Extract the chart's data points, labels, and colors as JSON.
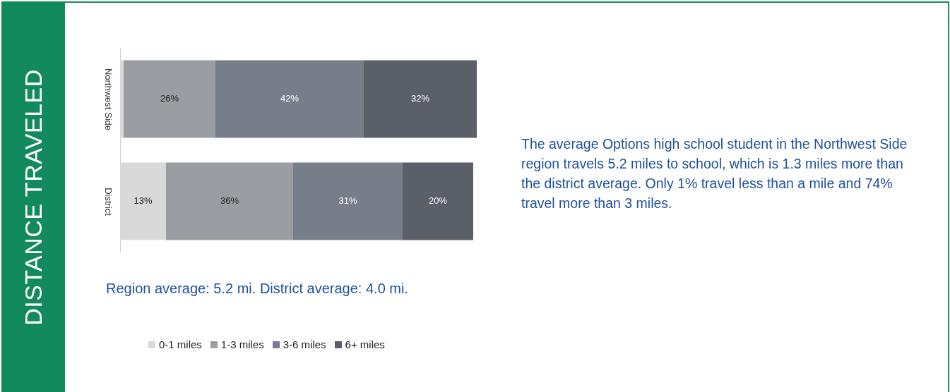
{
  "chart_data": {
    "type": "bar",
    "orientation": "horizontal",
    "stacked": true,
    "title": "DISTANCE TRAVELED",
    "subtitle": "Region average: 5.2 mi. District average: 4.0 mi.",
    "annotations": [
      "The average Options high school student in the Northwest Side region travels 5.2 miles to school, which is 1.3 miles more than the district average. Only 1% travel less than a mile and 74% travel more than 3 miles."
    ],
    "categories": [
      "Northwest Side",
      "District"
    ],
    "series": [
      {
        "name": "0-1 miles",
        "color": "#d9d9d9",
        "values": [
          1,
          13
        ],
        "value_labels": [
          null,
          "13%"
        ]
      },
      {
        "name": "1-3 miles",
        "color": "#9a9ea3",
        "values": [
          26,
          36
        ],
        "value_labels": [
          "26%",
          "36%"
        ]
      },
      {
        "name": "3-6 miles",
        "color": "#787e89",
        "values": [
          42,
          31
        ],
        "value_labels": [
          "42%",
          "31%"
        ]
      },
      {
        "name": "6+ miles",
        "color": "#5b5f68",
        "values": [
          32,
          20
        ],
        "value_labels": [
          "32%",
          "20%"
        ]
      }
    ],
    "legend": "bottom",
    "grid": false,
    "tick_labels": "y"
  }
}
